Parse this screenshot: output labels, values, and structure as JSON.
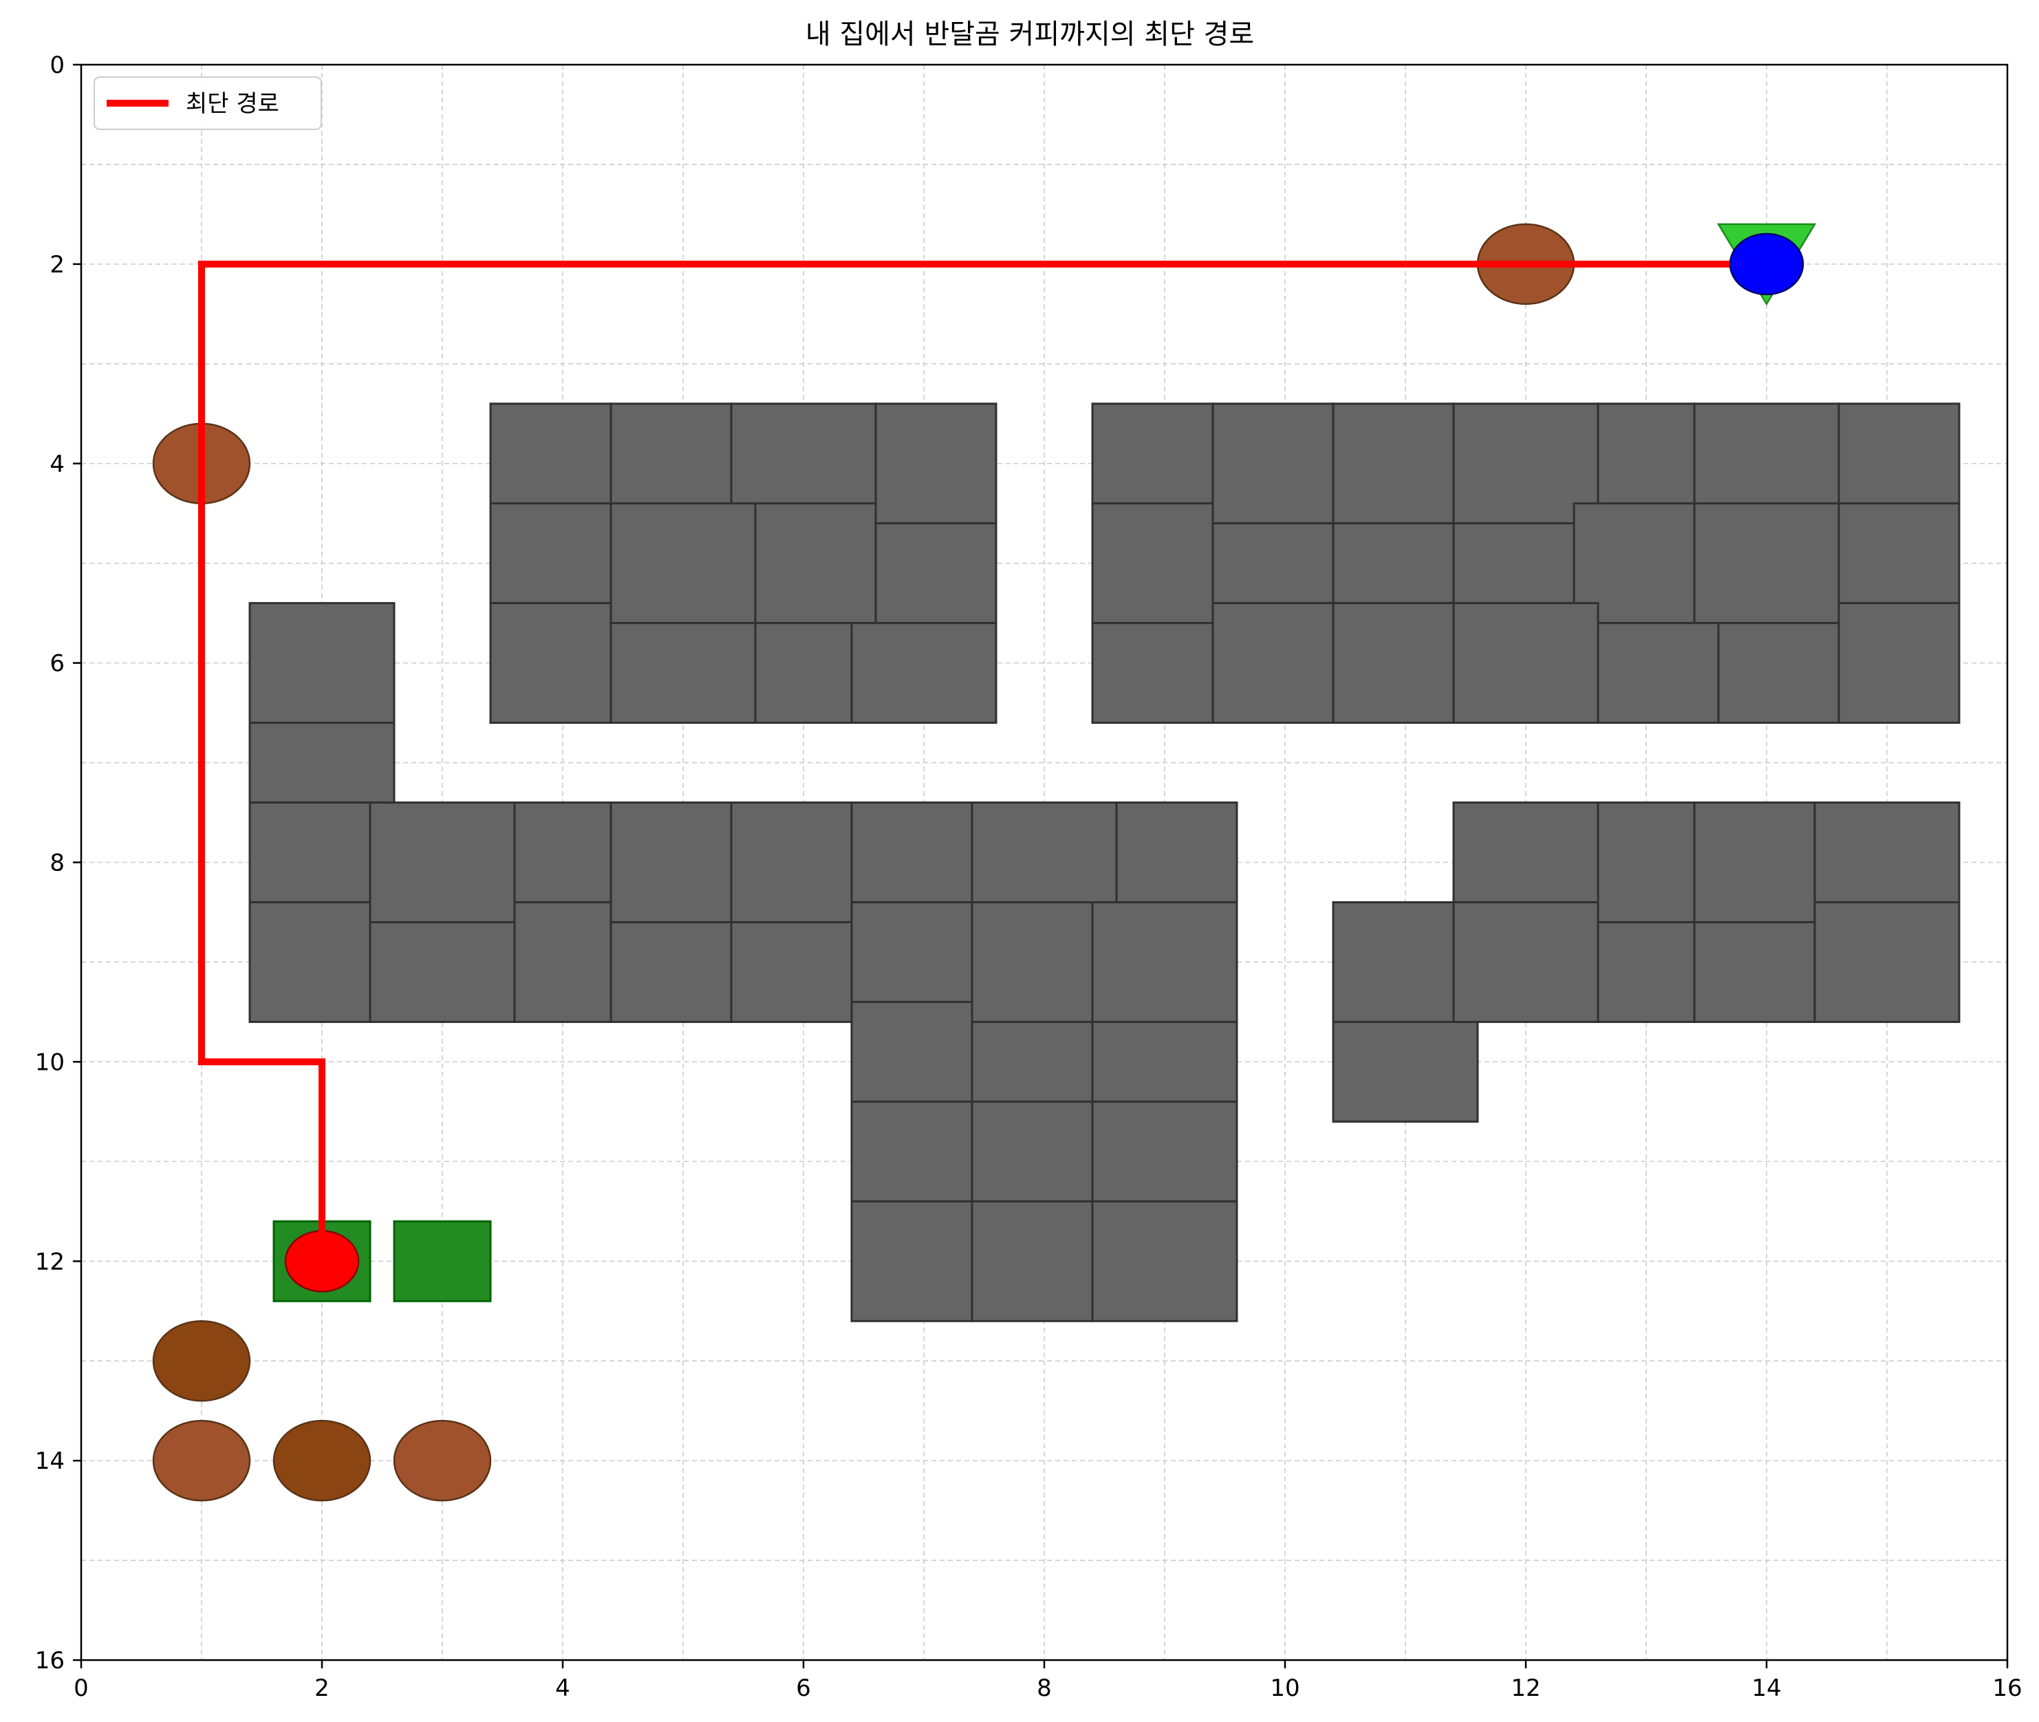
{
  "chart_data": {
    "type": "map",
    "title": "내 집에서 반달곰 커피까지의 최단 경로",
    "xlim": [
      0,
      16
    ],
    "ylim": [
      16,
      0
    ],
    "y_inverted": true,
    "x_ticks": [
      "0",
      "2",
      "4",
      "6",
      "8",
      "10",
      "12",
      "14",
      "16"
    ],
    "y_ticks": [
      "0",
      "2",
      "4",
      "6",
      "8",
      "10",
      "12",
      "14",
      "16"
    ],
    "x_tick_values": [
      0,
      2,
      4,
      6,
      8,
      10,
      12,
      14,
      16
    ],
    "y_tick_values": [
      0,
      2,
      4,
      6,
      8,
      10,
      12,
      14,
      16
    ],
    "grid": true,
    "minor_grid_step": 1,
    "legend": {
      "location": "upper-left",
      "entries": [
        {
          "label": "최단 경로",
          "color": "#ff0000"
        }
      ]
    },
    "colors": {
      "building": "#656565",
      "building_edge": "#303030",
      "path": "#ff0000",
      "start": "#ff0000",
      "goal": "#0000ff",
      "cafe_triangle": "#33cc33",
      "house": "#228b22",
      "bear_light": "#a0522d",
      "bear_dark": "#8b4513"
    },
    "buildings": [
      [
        3.4,
        3.4,
        4.4,
        4.4
      ],
      [
        4.4,
        3.4,
        5.4,
        4.4
      ],
      [
        5.4,
        3.4,
        6.6,
        4.4
      ],
      [
        6.6,
        3.4,
        7.6,
        4.6
      ],
      [
        3.4,
        4.4,
        4.4,
        5.4
      ],
      [
        4.4,
        4.4,
        5.6,
        5.6
      ],
      [
        5.6,
        4.4,
        6.6,
        5.6
      ],
      [
        6.6,
        4.6,
        7.6,
        5.6
      ],
      [
        3.4,
        5.4,
        4.4,
        6.6
      ],
      [
        4.4,
        5.6,
        5.6,
        6.6
      ],
      [
        5.6,
        5.6,
        6.4,
        6.6
      ],
      [
        6.4,
        5.6,
        7.6,
        6.6
      ],
      [
        8.4,
        3.4,
        9.4,
        4.4
      ],
      [
        9.4,
        3.4,
        10.4,
        4.6
      ],
      [
        10.4,
        3.4,
        11.4,
        4.6
      ],
      [
        11.4,
        3.4,
        12.6,
        4.6
      ],
      [
        12.6,
        3.4,
        13.4,
        4.4
      ],
      [
        13.4,
        3.4,
        14.6,
        4.4
      ],
      [
        14.6,
        3.4,
        15.6,
        4.4
      ],
      [
        8.4,
        4.4,
        9.4,
        5.6
      ],
      [
        9.4,
        4.6,
        10.4,
        5.4
      ],
      [
        10.4,
        4.6,
        11.4,
        5.4
      ],
      [
        11.4,
        4.6,
        12.4,
        5.4
      ],
      [
        12.4,
        4.4,
        13.4,
        5.6
      ],
      [
        13.4,
        4.4,
        14.6,
        5.6
      ],
      [
        14.6,
        4.4,
        15.6,
        5.4
      ],
      [
        8.4,
        5.6,
        9.4,
        6.6
      ],
      [
        9.4,
        5.4,
        10.4,
        6.6
      ],
      [
        10.4,
        5.4,
        11.4,
        6.6
      ],
      [
        11.4,
        5.4,
        12.6,
        6.6
      ],
      [
        12.6,
        5.6,
        13.6,
        6.6
      ],
      [
        13.6,
        5.6,
        14.6,
        6.6
      ],
      [
        14.6,
        5.4,
        15.6,
        6.6
      ],
      [
        1.4,
        5.4,
        2.6,
        6.6
      ],
      [
        1.4,
        6.6,
        2.6,
        7.4
      ],
      [
        1.4,
        7.4,
        2.4,
        8.4
      ],
      [
        1.4,
        8.4,
        2.4,
        9.6
      ],
      [
        2.4,
        7.4,
        3.6,
        8.6
      ],
      [
        2.4,
        8.6,
        3.6,
        9.6
      ],
      [
        3.6,
        7.4,
        4.4,
        8.4
      ],
      [
        3.6,
        8.4,
        4.4,
        9.6
      ],
      [
        4.4,
        7.4,
        5.4,
        8.6
      ],
      [
        4.4,
        8.6,
        5.4,
        9.6
      ],
      [
        5.4,
        7.4,
        6.4,
        8.6
      ],
      [
        5.4,
        8.6,
        6.4,
        9.6
      ],
      [
        6.4,
        7.4,
        7.4,
        8.4
      ],
      [
        6.4,
        8.4,
        7.4,
        9.4
      ],
      [
        6.4,
        9.4,
        7.4,
        10.4
      ],
      [
        6.4,
        10.4,
        7.4,
        11.4
      ],
      [
        6.4,
        11.4,
        7.4,
        12.6
      ],
      [
        7.4,
        7.4,
        8.6,
        8.4
      ],
      [
        8.6,
        7.4,
        9.6,
        8.4
      ],
      [
        7.4,
        8.4,
        8.4,
        9.6
      ],
      [
        8.4,
        8.4,
        9.6,
        9.6
      ],
      [
        7.4,
        9.6,
        8.4,
        10.4
      ],
      [
        8.4,
        9.6,
        9.6,
        10.4
      ],
      [
        7.4,
        10.4,
        8.4,
        11.4
      ],
      [
        8.4,
        10.4,
        9.6,
        11.4
      ],
      [
        7.4,
        11.4,
        8.4,
        12.6
      ],
      [
        8.4,
        11.4,
        9.6,
        12.6
      ],
      [
        10.4,
        8.4,
        11.4,
        9.6
      ],
      [
        10.4,
        9.6,
        11.6,
        10.6
      ],
      [
        11.4,
        7.4,
        12.6,
        8.4
      ],
      [
        11.4,
        8.4,
        12.6,
        9.6
      ],
      [
        12.6,
        7.4,
        13.4,
        8.6
      ],
      [
        12.6,
        8.6,
        13.4,
        9.6
      ],
      [
        13.4,
        7.4,
        14.4,
        8.6
      ],
      [
        13.4,
        8.6,
        14.4,
        9.6
      ],
      [
        14.4,
        7.4,
        15.6,
        8.4
      ],
      [
        14.4,
        8.4,
        15.6,
        9.6
      ]
    ],
    "houses": [
      [
        1.6,
        11.6,
        2.4,
        12.4
      ],
      [
        2.6,
        11.6,
        3.4,
        12.4
      ]
    ],
    "bears": [
      {
        "x": 12,
        "y": 2,
        "tone": "light"
      },
      {
        "x": 1,
        "y": 4,
        "tone": "light"
      },
      {
        "x": 1,
        "y": 13,
        "tone": "dark"
      },
      {
        "x": 1,
        "y": 14,
        "tone": "light"
      },
      {
        "x": 2,
        "y": 14,
        "tone": "dark"
      },
      {
        "x": 3,
        "y": 14,
        "tone": "light"
      }
    ],
    "start": {
      "x": 2,
      "y": 12
    },
    "goal": {
      "x": 14,
      "y": 2
    },
    "path": [
      [
        2,
        12
      ],
      [
        2,
        10
      ],
      [
        1,
        10
      ],
      [
        1,
        2
      ],
      [
        14,
        2
      ]
    ]
  }
}
